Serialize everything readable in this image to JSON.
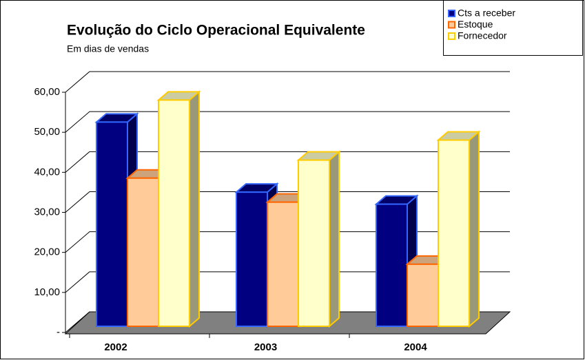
{
  "chart_data": {
    "type": "bar3d",
    "title": "Evolução do Ciclo Operacional Equivalente",
    "subtitle": "Em dias de vendas",
    "categories": [
      "2002",
      "2003",
      "2004"
    ],
    "series": [
      {
        "name": "Cts a receber",
        "color": "#000080",
        "border": "#3366ff",
        "values": [
          51,
          33.5,
          30.5
        ]
      },
      {
        "name": "Estoque",
        "color": "#ffcc99",
        "border": "#ff6600",
        "values": [
          37,
          31,
          15.5
        ]
      },
      {
        "name": "Fornecedor",
        "color": "#ffffcc",
        "border": "#ffcc00",
        "values": [
          56.5,
          41.5,
          46.5
        ]
      }
    ],
    "ylim": [
      0,
      60
    ],
    "yticks": [
      {
        "value": 0,
        "label": "-"
      },
      {
        "value": 10,
        "label": "10,00"
      },
      {
        "value": 20,
        "label": "20,00"
      },
      {
        "value": 30,
        "label": "30,00"
      },
      {
        "value": 40,
        "label": "40,00"
      },
      {
        "value": 50,
        "label": "50,00"
      },
      {
        "value": 60,
        "label": "60,00"
      }
    ],
    "grid": true,
    "legend": "top-right"
  }
}
